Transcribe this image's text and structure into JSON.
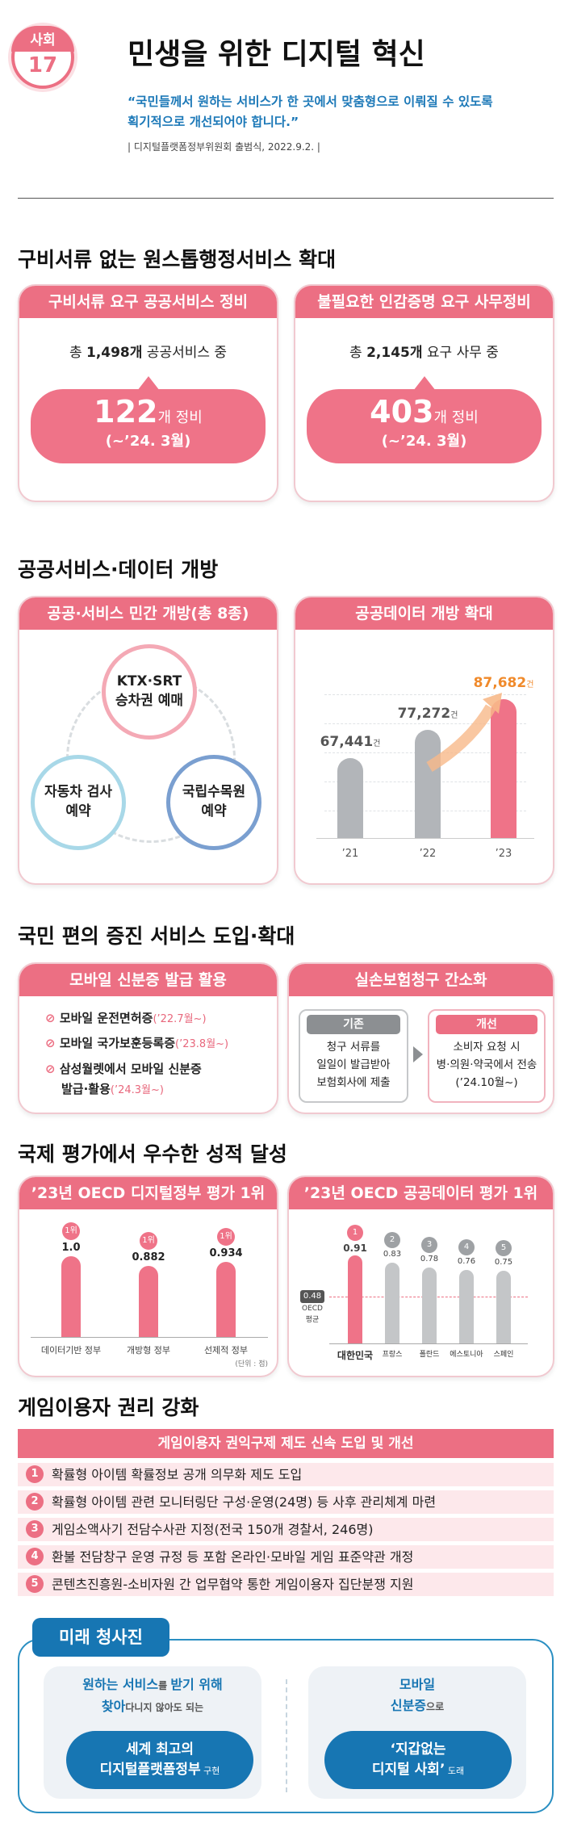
{
  "header": {
    "badge_category": "사회",
    "badge_number": "17",
    "title": "민생을 위한 디지털 혁신",
    "quote_line1": "“국민들께서 원하는 서비스가 한 곳에서 맞춤형으로 이뤄질 수 있도록",
    "quote_line2": "획기적으로 개선되어야 합니다.”",
    "source": "| 디지털플랫폼정부위원회 출범식, 2022.9.2. |"
  },
  "section1": {
    "title": "구비서류 없는 원스톱행정서비스 확대",
    "card_left": {
      "head": "구비서류 요구 공공서비스 정비",
      "total_prefix": "총 ",
      "total_value": "1,498개",
      "total_suffix": " 공공서비스 중",
      "big": "122",
      "big_unit": "개 정비",
      "period": "(~’24. 3월)"
    },
    "card_right": {
      "head": "불필요한 인감증명 요구 사무정비",
      "total_prefix": "총 ",
      "total_value": "2,145개",
      "total_suffix": " 요구 사무 중",
      "big": "403",
      "big_unit": "개 정비",
      "period": "(~’24. 3월)"
    }
  },
  "section2": {
    "title": "공공서비스·데이터 개방",
    "card_left": {
      "head": "공공·서비스 민간 개방(총 8종)",
      "circles": [
        {
          "line1": "KTX·SRT",
          "line2": "승차권 예매",
          "color": "#f4a9b5"
        },
        {
          "line1": "자동차 검사",
          "line2": "예약",
          "color": "#a8d8e8"
        },
        {
          "line1": "국립수목원",
          "line2": "예약",
          "color": "#7a9fd0"
        }
      ]
    },
    "card_right": {
      "head": "공공데이터 개방 확대"
    }
  },
  "chart_data": [
    {
      "type": "bar",
      "title": "공공데이터 개방 확대",
      "categories": [
        "’21",
        "’22",
        "’23"
      ],
      "values": [
        67441,
        77272,
        87682
      ],
      "value_labels": [
        "67,441",
        "77,272",
        "87,682"
      ],
      "unit": "건",
      "colors": [
        "#b2b5b9",
        "#b2b5b9",
        "#ef7388"
      ]
    },
    {
      "type": "bar",
      "title": "’23년 OECD 디지털정부 평가 1위",
      "categories": [
        "데이터기반 정부",
        "개방형 정부",
        "선제적 정부"
      ],
      "values": [
        1.0,
        0.882,
        0.934
      ],
      "value_labels": [
        "1.0",
        "0.882",
        "0.934"
      ],
      "ranks": [
        "1위",
        "1위",
        "1위"
      ],
      "unit_note": "(단위 : 점)"
    },
    {
      "type": "bar",
      "title": "’23년 OECD 공공데이터 평가 1위",
      "categories": [
        "대한민국",
        "프랑스",
        "폴란드",
        "에스토니아",
        "스페인"
      ],
      "values": [
        0.91,
        0.83,
        0.78,
        0.76,
        0.75
      ],
      "value_labels": [
        "0.91",
        "0.83",
        "0.78",
        "0.76",
        "0.75"
      ],
      "ranks": [
        "1",
        "2",
        "3",
        "4",
        "5"
      ],
      "reference": {
        "value": 0.48,
        "label": "0.48",
        "caption_line1": "OECD",
        "caption_line2": "평균"
      }
    }
  ],
  "section3": {
    "title": "국민 편의 증진 서비스 도입·확대",
    "card_left": {
      "head": "모바일 신분증 발급 활용",
      "items": [
        {
          "text": "모바일 운전면허증",
          "date": "(’22.7월~)"
        },
        {
          "text": "모바일 국가보훈등록증",
          "date": "(’23.8월~)"
        },
        {
          "text": "삼성월렛에서 모바일 신분증",
          "text2": "발급·활용",
          "date": "(’24.3월~)"
        }
      ]
    },
    "card_right": {
      "head": "실손보험청구 간소화",
      "before_label": "기존",
      "before_lines": [
        "청구 서류를",
        "일일이 발급받아",
        "보험회사에 제출"
      ],
      "after_label": "개선",
      "after_lines": [
        "소비자 요청 시",
        "병·의원·약국에서 전송",
        "(’24.10월~)"
      ]
    }
  },
  "section4": {
    "title": "국제 평가에서 우수한 성적 달성",
    "card_left_head": "’23년 OECD 디지털정부 평가 1위",
    "card_right_head": "’23년 OECD 공공데이터 평가 1위"
  },
  "section5": {
    "title": "게임이용자 권리 강화",
    "banner": "게임이용자 권익구제 제도 신속 도입 및 개선",
    "items": [
      {
        "num": "1",
        "text": "확률형 아이템 확률정보 공개 의무화 제도 도입"
      },
      {
        "num": "2",
        "text": "확률형 아이템 관련 모니터링단 구성·운영(24명) 등 사후 관리체계 마련"
      },
      {
        "num": "3",
        "text": "게임소액사기 전담수사관 지정(전국 150개 경찰서, 246명)"
      },
      {
        "num": "4",
        "text": "환불 전담창구 운영 규정 등 포함 온라인·모바일 게임 표준약관 개정"
      },
      {
        "num": "5",
        "text": "콘텐츠진흥원-소비자원 간 업무협약 통한 게임이용자 집단분쟁 지원"
      }
    ]
  },
  "future": {
    "tab": "미래 청사진",
    "left_line1_a": "원하는 서비스",
    "left_line1_b": "를 ",
    "left_line1_c": "받기 위해",
    "left_line2_a": "찾아",
    "left_line2_b": "다니지 않아도 되는",
    "left_pill_line1": "세계 최고의",
    "left_pill_line2": "디지털플랫폼정부",
    "left_pill_suffix": " 구현",
    "right_line1": "모바일",
    "right_line2_a": "신분증",
    "right_line2_b": "으로",
    "right_pill_line1": "‘지갑없는",
    "right_pill_line2": "디지털 사회’",
    "right_pill_suffix": " 도래"
  }
}
